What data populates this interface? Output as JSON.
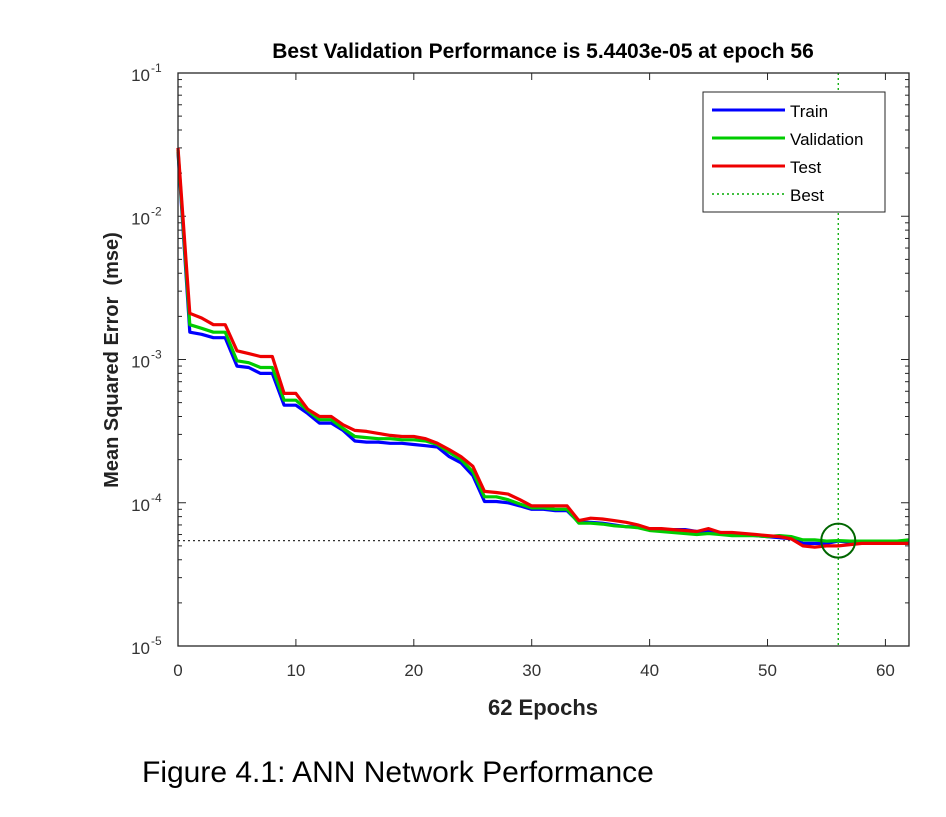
{
  "chart_data": {
    "type": "line",
    "title": "Best Validation Performance is 5.4403e-05 at epoch 56",
    "xlabel": "62 Epochs",
    "ylabel": "Mean Squared Error  (mse)",
    "yscale": "log",
    "xlim": [
      0,
      62
    ],
    "ylim": [
      1e-05,
      0.1
    ],
    "x_ticks": [
      "0",
      "10",
      "20",
      "30",
      "40",
      "50",
      "60"
    ],
    "y_ticks": [
      {
        "base": "10",
        "exp": "-5"
      },
      {
        "base": "10",
        "exp": "-4"
      },
      {
        "base": "10",
        "exp": "-3"
      },
      {
        "base": "10",
        "exp": "-2"
      },
      {
        "base": "10",
        "exp": "-1"
      }
    ],
    "legend_position": "top-right",
    "legend": [
      "Train",
      "Validation",
      "Test",
      "Best"
    ],
    "colors": {
      "train": "#0000ff",
      "validation": "#00cc00",
      "test": "#ee0000",
      "best": "#00aa00",
      "best_circle": "#006600",
      "axis": "#000000"
    },
    "x": [
      0,
      1,
      2,
      3,
      4,
      5,
      6,
      7,
      8,
      9,
      10,
      11,
      12,
      13,
      14,
      15,
      16,
      17,
      18,
      19,
      20,
      21,
      22,
      23,
      24,
      25,
      26,
      27,
      28,
      29,
      30,
      31,
      32,
      33,
      34,
      35,
      36,
      37,
      38,
      39,
      40,
      41,
      42,
      43,
      44,
      45,
      46,
      47,
      48,
      49,
      50,
      51,
      52,
      53,
      54,
      55,
      56,
      57,
      58,
      59,
      60,
      61,
      62
    ],
    "series": [
      {
        "name": "Train",
        "values": [
          0.028,
          0.00155,
          0.0015,
          0.00142,
          0.00142,
          0.0009,
          0.00088,
          0.0008,
          0.0008,
          0.00048,
          0.00048,
          0.00042,
          0.00036,
          0.00036,
          0.00032,
          0.00027,
          0.000265,
          0.000265,
          0.00026,
          0.00026,
          0.000255,
          0.00025,
          0.000245,
          0.00021,
          0.00019,
          0.000155,
          0.000102,
          0.000102,
          0.0001,
          9.5e-05,
          9e-05,
          9e-05,
          8.8e-05,
          8.8e-05,
          7.3e-05,
          7.3e-05,
          7.2e-05,
          7e-05,
          6.8e-05,
          6.8e-05,
          6.5e-05,
          6.5e-05,
          6.5e-05,
          6.5e-05,
          6.3e-05,
          6.3e-05,
          6.2e-05,
          6.1e-05,
          6e-05,
          5.9e-05,
          5.8e-05,
          5.7e-05,
          5.6e-05,
          5.2e-05,
          5.2e-05,
          5.2e-05,
          5.4e-05,
          5.3e-05,
          5.3e-05,
          5.3e-05,
          5.3e-05,
          5.3e-05,
          5.3e-05
        ]
      },
      {
        "name": "Validation",
        "values": [
          0.029,
          0.00175,
          0.00165,
          0.00155,
          0.00155,
          0.00098,
          0.00095,
          0.00088,
          0.00088,
          0.00052,
          0.00052,
          0.00044,
          0.00038,
          0.00038,
          0.00033,
          0.00029,
          0.000285,
          0.00028,
          0.00028,
          0.000275,
          0.000275,
          0.00027,
          0.000255,
          0.000225,
          0.0002,
          0.000165,
          0.00011,
          0.00011,
          0.000105,
          9.8e-05,
          9.2e-05,
          9.2e-05,
          9e-05,
          9e-05,
          7.2e-05,
          7.2e-05,
          7.1e-05,
          6.9e-05,
          6.8e-05,
          6.7e-05,
          6.4e-05,
          6.3e-05,
          6.2e-05,
          6.1e-05,
          6e-05,
          6.1e-05,
          6e-05,
          5.9e-05,
          5.9e-05,
          5.9e-05,
          5.8e-05,
          5.9e-05,
          5.8e-05,
          5.5e-05,
          5.5e-05,
          5.4e-05,
          5.4403e-05,
          5.4e-05,
          5.4e-05,
          5.4e-05,
          5.4e-05,
          5.4e-05,
          5.5e-05
        ]
      },
      {
        "name": "Test",
        "values": [
          0.03,
          0.0021,
          0.00195,
          0.00175,
          0.00175,
          0.00115,
          0.0011,
          0.00105,
          0.00105,
          0.00058,
          0.00058,
          0.00045,
          0.0004,
          0.0004,
          0.00035,
          0.00032,
          0.000315,
          0.000305,
          0.000295,
          0.00029,
          0.00029,
          0.00028,
          0.00026,
          0.000235,
          0.00021,
          0.00018,
          0.00012,
          0.000118,
          0.000115,
          0.000105,
          9.5e-05,
          9.5e-05,
          9.5e-05,
          9.5e-05,
          7.5e-05,
          7.8e-05,
          7.7e-05,
          7.5e-05,
          7.3e-05,
          7e-05,
          6.6e-05,
          6.6e-05,
          6.5e-05,
          6.4e-05,
          6.3e-05,
          6.6e-05,
          6.2e-05,
          6.2e-05,
          6.1e-05,
          6e-05,
          5.9e-05,
          5.8e-05,
          5.6e-05,
          5e-05,
          4.9e-05,
          5e-05,
          5e-05,
          5.1e-05,
          5.2e-05,
          5.2e-05,
          5.2e-05,
          5.2e-05,
          5.2e-05
        ]
      }
    ],
    "best": {
      "epoch": 56,
      "value": 5.4403e-05
    }
  },
  "caption": "Figure 4.1: ANN Network Performance"
}
